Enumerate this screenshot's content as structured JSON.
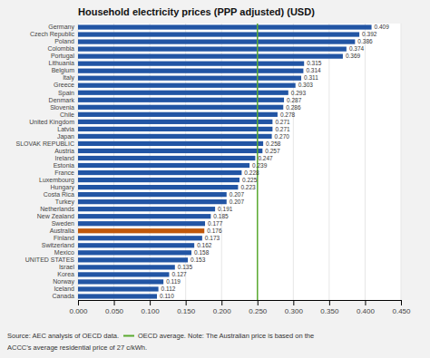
{
  "chart_data": {
    "type": "bar",
    "orientation": "horizontal",
    "title": "Household electricity prices (PPP adjusted) (USD)",
    "categories": [
      "Germany",
      "Czech Republic",
      "Poland",
      "Colombia",
      "Portugal",
      "Lithuania",
      "Belgium",
      "Italy",
      "Greece",
      "Spain",
      "Denmark",
      "Slovenia",
      "Chile",
      "United Kingdom",
      "Latvia",
      "Japan",
      "SLOVAK REPUBLIC",
      "Austria",
      "Ireland",
      "Estonia",
      "France",
      "Luxembourg",
      "Hungary",
      "Costa Rica",
      "Turkey",
      "Netherlands",
      "New Zealand",
      "Sweden",
      "Australia",
      "Finland",
      "Switzerland",
      "Mexico",
      "UNITED STATES",
      "Israel",
      "Korea",
      "Norway",
      "Iceland",
      "Canada"
    ],
    "values": [
      0.409,
      0.392,
      0.386,
      0.374,
      0.369,
      0.315,
      0.314,
      0.311,
      0.303,
      0.293,
      0.287,
      0.286,
      0.278,
      0.271,
      0.271,
      0.27,
      0.258,
      0.257,
      0.247,
      0.239,
      0.228,
      0.225,
      0.223,
      0.207,
      0.207,
      0.191,
      0.185,
      0.177,
      0.176,
      0.173,
      0.162,
      0.158,
      0.153,
      0.135,
      0.127,
      0.119,
      0.112,
      0.11
    ],
    "value_labels": [
      "0.409",
      "0.392",
      "0.386",
      "0.374",
      "0.369",
      "0.315",
      "0.314",
      "0.311",
      "0.303",
      "0.293",
      "0.287",
      "0.286",
      "0.278",
      "0.271",
      "0.271",
      "0.270",
      "0.258",
      "0.257",
      "0.247",
      "0.239",
      "0.228",
      "0.225",
      "0.223",
      "0.207",
      "0.207",
      "0.191",
      "0.185",
      "0.177",
      "0.176",
      "0.173",
      "0.162",
      "0.158",
      "0.153",
      "0.135",
      "0.127",
      "0.119",
      "0.112",
      "0.110"
    ],
    "data_labels": true,
    "colors": [
      "#2255a4",
      "#2255a4",
      "#2255a4",
      "#2255a4",
      "#2255a4",
      "#2255a4",
      "#2255a4",
      "#2255a4",
      "#2255a4",
      "#2255a4",
      "#2255a4",
      "#2255a4",
      "#2255a4",
      "#2255a4",
      "#2255a4",
      "#2255a4",
      "#2255a4",
      "#2255a4",
      "#2255a4",
      "#2255a4",
      "#2255a4",
      "#2255a4",
      "#2255a4",
      "#2255a4",
      "#2255a4",
      "#2255a4",
      "#2255a4",
      "#2255a4",
      "#c0580a",
      "#2255a4",
      "#2255a4",
      "#2255a4",
      "#2255a4",
      "#2255a4",
      "#2255a4",
      "#2255a4",
      "#2255a4",
      "#2255a4"
    ],
    "xlim": [
      0.0,
      0.45
    ],
    "xticks": [
      {
        "value": 0.0,
        "label": "0.000"
      },
      {
        "value": 0.05,
        "label": "0.050"
      },
      {
        "value": 0.1,
        "label": "0.100"
      },
      {
        "value": 0.15,
        "label": "0.150"
      },
      {
        "value": 0.2,
        "label": "0.200"
      },
      {
        "value": 0.25,
        "label": "0.250"
      },
      {
        "value": 0.3,
        "label": "0.300"
      },
      {
        "value": 0.35,
        "label": "0.350"
      },
      {
        "value": 0.4,
        "label": "0.400"
      },
      {
        "value": 0.45,
        "label": "0.450"
      }
    ],
    "grid": true,
    "reference_line": {
      "value": 0.25,
      "color": "#5aaa30"
    },
    "notes": [
      "Source: AEC analysis of OECD data.",
      "OECD average. Note: The Australian price is based on the",
      "ACCC’s average residential price of 27 c/kWh."
    ]
  }
}
